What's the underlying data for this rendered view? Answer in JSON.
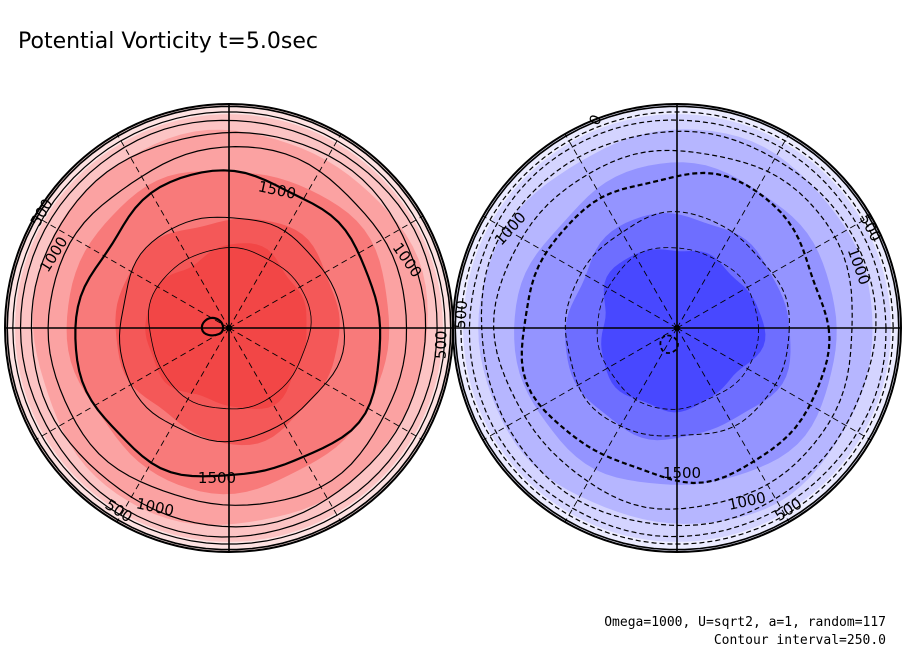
{
  "title": "Potential Vorticity t=5.0sec",
  "footer": {
    "params": "Omega=1000, U=sqrt2, a=1, random=117",
    "interval": "Contour interval=250.0"
  },
  "colors": {
    "north_bands": [
      "#fde2e2",
      "#fcc4c4",
      "#fba2a2",
      "#f87a7a",
      "#f45858",
      "#f24646"
    ],
    "south_bands": [
      "#ececff",
      "#d4d4ff",
      "#b6b6ff",
      "#9494ff",
      "#6e6eff",
      "#4848ff"
    ]
  },
  "chart_data": {
    "type": "polar contour map",
    "contour_interval": 250.0,
    "panels": [
      {
        "hemisphere": "north",
        "levels": [
          0,
          250,
          500,
          750,
          1000,
          1250,
          1500,
          1750
        ],
        "contour_labels": [
          "500",
          "1000",
          "1000",
          "1500",
          "1500",
          "1000",
          "500",
          "500"
        ]
      },
      {
        "hemisphere": "south",
        "levels": [
          0,
          -250,
          -500,
          -750,
          -1000,
          -1250,
          -1500,
          -1750
        ],
        "contour_labels": [
          "0",
          "1000",
          "500",
          "1000",
          "500",
          "1500",
          "1000",
          "500"
        ]
      }
    ]
  }
}
